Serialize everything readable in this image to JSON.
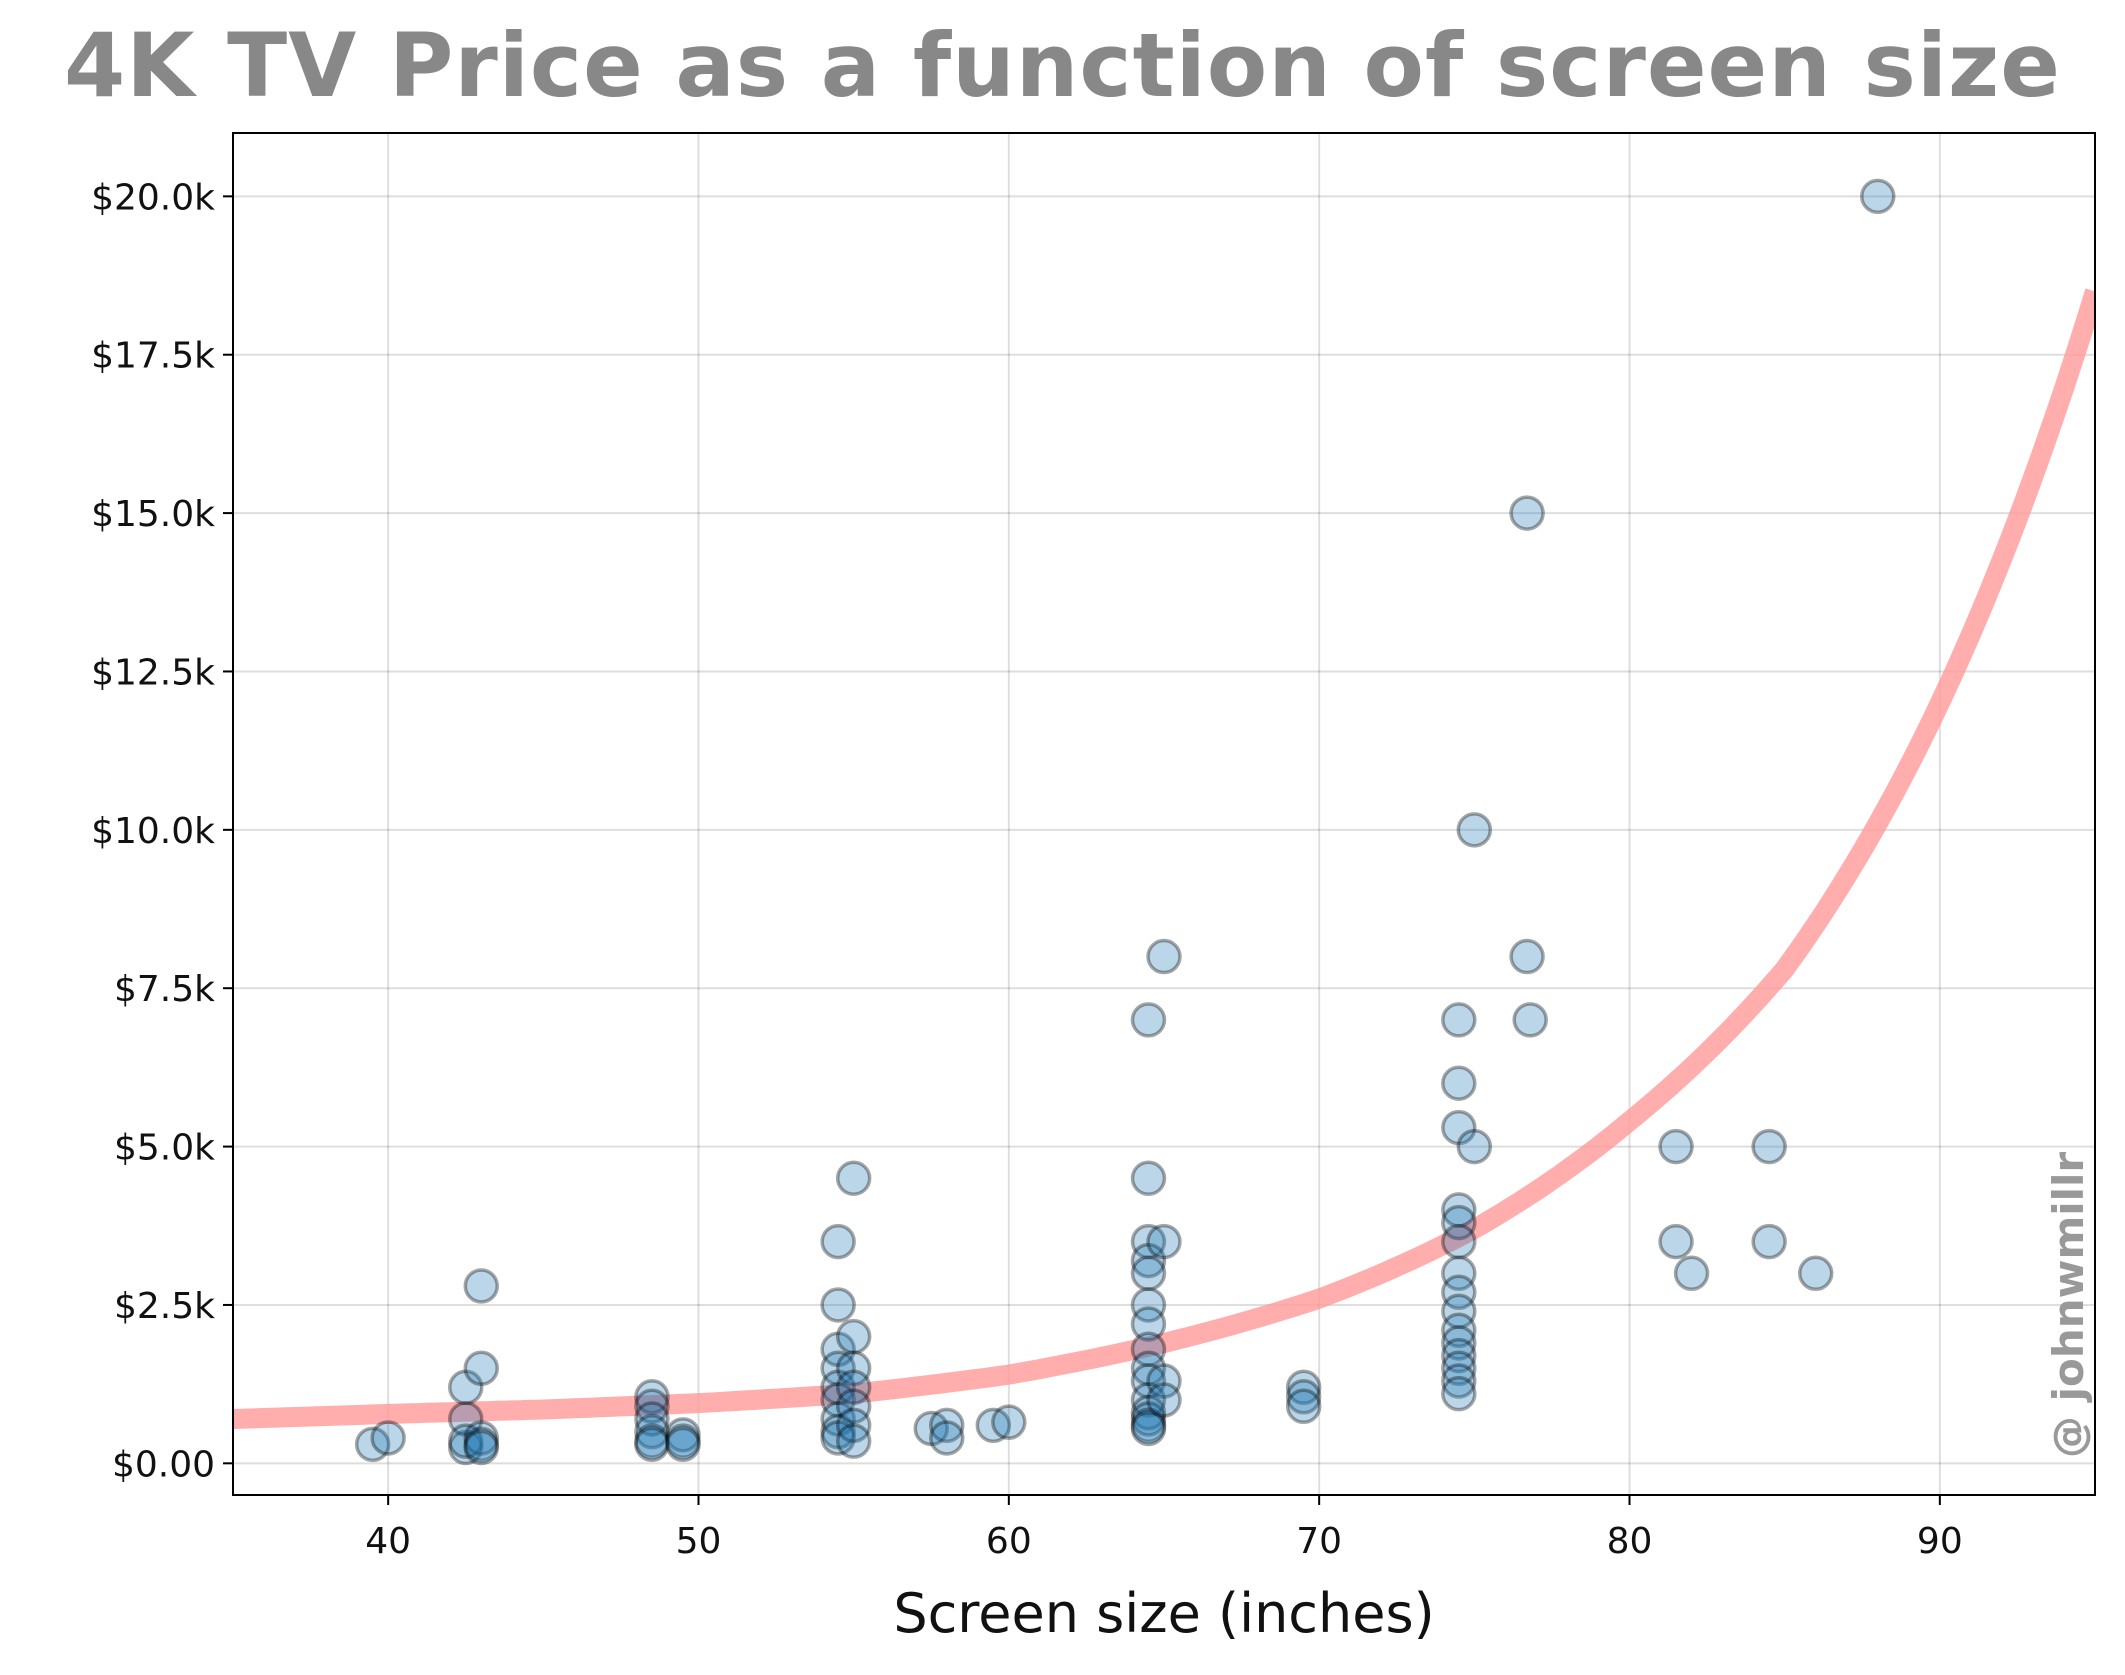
{
  "chart_data": {
    "type": "scatter",
    "title": "4K TV Price as a function of screen size",
    "xlabel": "Screen size (inches)",
    "ylabel": "",
    "xlim": [
      35,
      95
    ],
    "ylim": [
      -500,
      21000
    ],
    "x_ticks": [
      40,
      50,
      60,
      70,
      80,
      90
    ],
    "x_tick_labels": [
      "40",
      "50",
      "60",
      "70",
      "80",
      "90"
    ],
    "y_ticks": [
      0,
      2500,
      5000,
      7500,
      10000,
      12500,
      15000,
      17500,
      20000
    ],
    "y_tick_labels": [
      "$0.00",
      "$2.5k",
      "$5.0k",
      "$7.5k",
      "$10.0k",
      "$12.5k",
      "$15.0k",
      "$17.5k",
      "$20.0k"
    ],
    "grid": true,
    "watermark": "@ johnwmillr",
    "colors": {
      "points": "#1f77b4",
      "fit_curve": "#ff9999",
      "title": "#888888",
      "watermark": "#999999"
    },
    "fit_curve": {
      "form": "exponential",
      "x": [
        35,
        40,
        45,
        50,
        55,
        60,
        65,
        70,
        75,
        80,
        85,
        90,
        95
      ],
      "y": [
        700,
        780,
        850,
        950,
        1100,
        1400,
        1900,
        2600,
        3700,
        5400,
        7800,
        12000,
        18500
      ]
    },
    "series": [
      {
        "x": [
          39.5,
          40,
          42.5,
          42.5,
          42.5,
          42.5,
          43,
          43,
          43,
          43,
          43,
          48.5,
          48.5,
          48.5,
          48.5,
          48.5,
          48.5,
          49.5,
          49.5,
          49.5,
          54.5,
          54.5,
          54.5,
          54.5,
          54.5,
          54.5,
          54.5,
          54.5,
          54.5,
          55,
          55,
          55,
          55,
          55,
          55,
          55,
          57.5,
          58,
          58,
          59.5,
          60,
          64.5,
          64.5,
          64.5,
          64.5,
          64.5,
          64.5,
          64.5,
          64.5,
          64.5,
          64.5,
          64.5,
          64.5,
          64.5,
          64.5,
          64.5,
          65,
          65,
          65,
          65,
          69.5,
          69.5,
          69.5,
          74.5,
          74.5,
          74.5,
          74.5,
          74.5,
          74.5,
          74.5,
          74.5,
          74.5,
          74.5,
          74.5,
          74.5,
          74.5,
          74.5,
          74.5,
          75,
          75,
          76.7,
          76.7,
          76.8,
          81.5,
          81.5,
          82,
          84.5,
          84.5,
          86,
          88
        ],
        "y": [
          300,
          400,
          250,
          700,
          1200,
          350,
          2800,
          1500,
          400,
          300,
          250,
          1050,
          900,
          700,
          500,
          350,
          300,
          450,
          350,
          300,
          3500,
          2500,
          1800,
          1500,
          1200,
          1000,
          700,
          500,
          400,
          4500,
          2000,
          1500,
          1200,
          900,
          600,
          350,
          550,
          600,
          400,
          600,
          650,
          7000,
          4500,
          3500,
          3200,
          3000,
          2500,
          2200,
          1800,
          1500,
          1300,
          1000,
          800,
          700,
          600,
          550,
          8000,
          3500,
          1300,
          1000,
          1200,
          1050,
          900,
          7000,
          6000,
          5300,
          4000,
          3800,
          3500,
          3000,
          2700,
          2400,
          2100,
          1900,
          1700,
          1500,
          1300,
          1100,
          10000,
          5000,
          15000,
          8000,
          7000,
          5000,
          3500,
          3000,
          5000,
          3500,
          3000,
          20000
        ]
      }
    ]
  }
}
